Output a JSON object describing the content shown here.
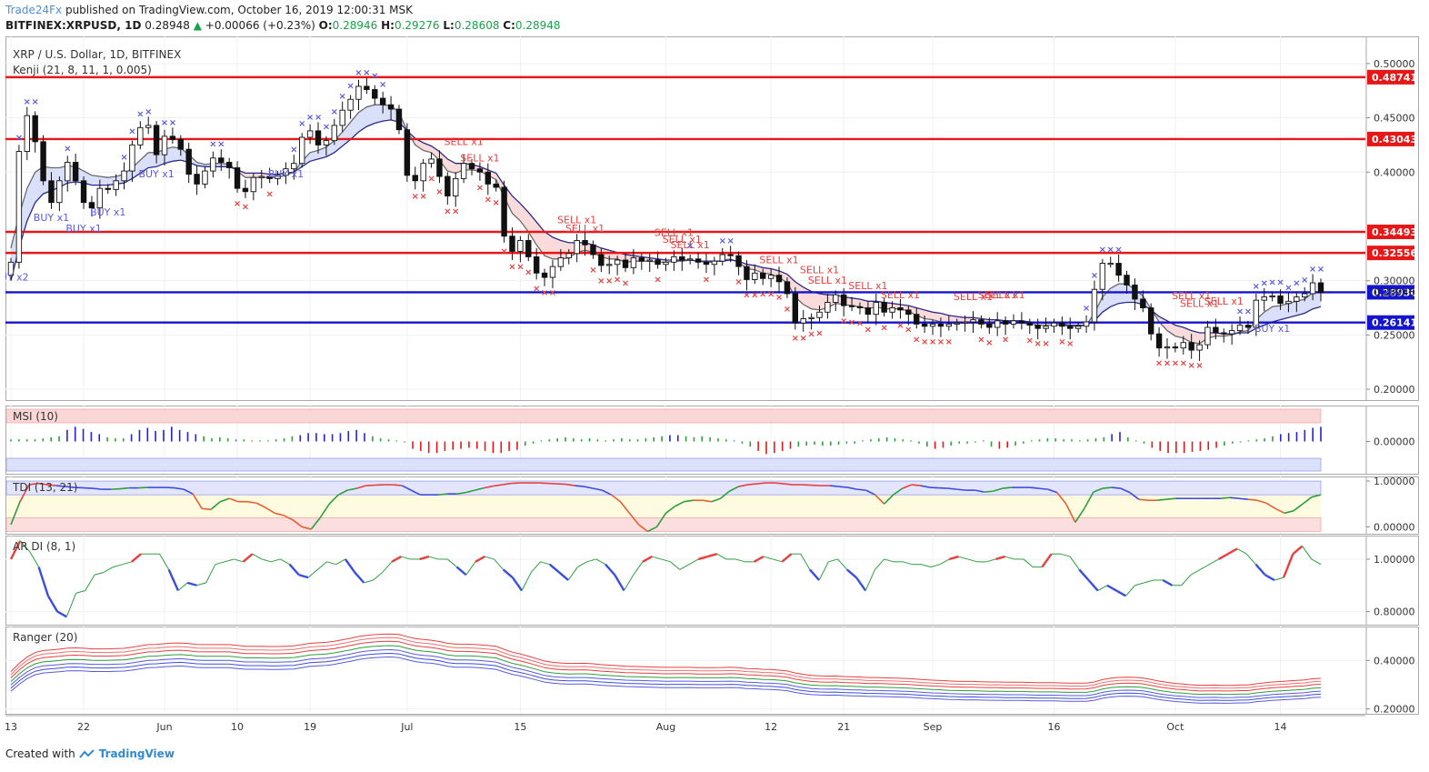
{
  "header": {
    "author": "Trade24Fx",
    "published_line": " published on TradingView.com, October 16, 2019 12:00:31 MSK",
    "symbol": "BITFINEX:XRPUSD, 1D",
    "last": "0.28948",
    "change_arrow": "▲",
    "change": "+0.00066 (+0.23%)",
    "o_label": "O:",
    "o": "0.28946",
    "h_label": "H:",
    "h": "0.29276",
    "l_label": "L:",
    "l": "0.28608",
    "c_label": "C:",
    "c": "0.28948"
  },
  "footer": {
    "created_with": "Created with",
    "brand": "TradingView"
  },
  "colors": {
    "up_text": "#19a24a",
    "resistance": "#e81717",
    "support": "#1414cc",
    "buy": "#5a5adc",
    "sell": "#e84040",
    "candle": "#111111",
    "pane_border": "#999999"
  },
  "chart_data": [
    {
      "type": "candlestick",
      "title": "XRP / U.S. Dollar, 1D, BITFINEX",
      "indicator": "Kenji (21, 8, 11, 1, 0.005)",
      "ylim": [
        0.19,
        0.525
      ],
      "yticks": [
        "0.50000",
        "0.45000",
        "0.40000",
        "0.30000",
        "0.25000",
        "0.20000"
      ],
      "ytick_values": [
        0.5,
        0.45,
        0.4,
        0.3,
        0.25,
        0.2
      ],
      "xticks": [
        "13",
        "22",
        "Jun",
        "10",
        "19",
        "Jul",
        "15",
        "Aug",
        "12",
        "21",
        "Sep",
        "16",
        "Oct",
        "14"
      ],
      "xtick_index": [
        0,
        9,
        19,
        28,
        37,
        49,
        63,
        81,
        94,
        103,
        114,
        129,
        144,
        157
      ],
      "horizontal_levels": [
        {
          "value": 0.48741,
          "label": "0.48741",
          "color": "#e81717"
        },
        {
          "value": 0.43043,
          "label": "0.43043",
          "color": "#e81717"
        },
        {
          "value": 0.34493,
          "label": "0.34493",
          "color": "#e81717"
        },
        {
          "value": 0.32556,
          "label": "0.32556",
          "color": "#e81717"
        },
        {
          "value": 0.2893,
          "label": "0.28930",
          "color": "#1414cc"
        },
        {
          "value": 0.26141,
          "label": "0.26141",
          "color": "#1414cc"
        }
      ],
      "last_price": {
        "value": 0.28948,
        "label": "0.28948"
      },
      "signals": [
        {
          "text": "BUY x2",
          "index": 0,
          "price": 0.3
        },
        {
          "text": "BUY x1",
          "index": 5,
          "price": 0.355
        },
        {
          "text": "BUY x1",
          "index": 9,
          "price": 0.345
        },
        {
          "text": "BUY x1",
          "index": 12,
          "price": 0.36
        },
        {
          "text": "BUY x1",
          "index": 18,
          "price": 0.395
        },
        {
          "text": "BUY x1",
          "index": 34,
          "price": 0.395
        },
        {
          "text": "SELL x1",
          "index": 56,
          "price": 0.425
        },
        {
          "text": "SELL x1",
          "index": 58,
          "price": 0.41
        },
        {
          "text": "SELL x1",
          "index": 70,
          "price": 0.353
        },
        {
          "text": "SELL x1",
          "index": 71,
          "price": 0.345
        },
        {
          "text": "SELL x1",
          "index": 82,
          "price": 0.341
        },
        {
          "text": "SELL x1",
          "index": 83,
          "price": 0.335
        },
        {
          "text": "SELL x1",
          "index": 84,
          "price": 0.33
        },
        {
          "text": "SELL x1",
          "index": 95,
          "price": 0.316
        },
        {
          "text": "SELL x1",
          "index": 100,
          "price": 0.307
        },
        {
          "text": "SELL x1",
          "index": 101,
          "price": 0.297
        },
        {
          "text": "SELL x1",
          "index": 106,
          "price": 0.292
        },
        {
          "text": "SELL x1",
          "index": 110,
          "price": 0.284
        },
        {
          "text": "SELL x1",
          "index": 119,
          "price": 0.282
        },
        {
          "text": "SELL x1",
          "index": 122,
          "price": 0.284
        },
        {
          "text": "SELL x1",
          "index": 123,
          "price": 0.284
        },
        {
          "text": "SELL x1",
          "index": 146,
          "price": 0.283
        },
        {
          "text": "SELL x1",
          "index": 147,
          "price": 0.276
        },
        {
          "text": "SELL x1",
          "index": 150,
          "price": 0.278
        },
        {
          "text": "BUY x1",
          "index": 156,
          "price": 0.253
        }
      ],
      "close": [
        0.317,
        0.419,
        0.452,
        0.428,
        0.392,
        0.372,
        0.392,
        0.409,
        0.392,
        0.372,
        0.367,
        0.385,
        0.384,
        0.392,
        0.401,
        0.425,
        0.441,
        0.443,
        0.416,
        0.433,
        0.43,
        0.421,
        0.398,
        0.389,
        0.401,
        0.413,
        0.409,
        0.404,
        0.385,
        0.382,
        0.395,
        0.396,
        0.394,
        0.397,
        0.403,
        0.408,
        0.432,
        0.438,
        0.425,
        0.429,
        0.443,
        0.457,
        0.467,
        0.479,
        0.476,
        0.468,
        0.462,
        0.458,
        0.439,
        0.397,
        0.392,
        0.408,
        0.412,
        0.396,
        0.378,
        0.394,
        0.408,
        0.403,
        0.4,
        0.389,
        0.386,
        0.341,
        0.327,
        0.337,
        0.322,
        0.307,
        0.303,
        0.313,
        0.321,
        0.325,
        0.337,
        0.333,
        0.324,
        0.314,
        0.315,
        0.319,
        0.312,
        0.321,
        0.318,
        0.319,
        0.315,
        0.317,
        0.322,
        0.319,
        0.32,
        0.317,
        0.315,
        0.318,
        0.324,
        0.323,
        0.313,
        0.301,
        0.307,
        0.302,
        0.305,
        0.299,
        0.288,
        0.261,
        0.265,
        0.266,
        0.271,
        0.28,
        0.287,
        0.277,
        0.276,
        0.275,
        0.269,
        0.28,
        0.271,
        0.275,
        0.273,
        0.269,
        0.26,
        0.258,
        0.26,
        0.258,
        0.26,
        0.261,
        0.262,
        0.264,
        0.26,
        0.257,
        0.263,
        0.26,
        0.263,
        0.261,
        0.259,
        0.256,
        0.258,
        0.261,
        0.258,
        0.256,
        0.258,
        0.262,
        0.292,
        0.316,
        0.316,
        0.305,
        0.296,
        0.283,
        0.275,
        0.251,
        0.238,
        0.239,
        0.238,
        0.243,
        0.236,
        0.241,
        0.257,
        0.252,
        0.251,
        0.254,
        0.259,
        0.257,
        0.282,
        0.285,
        0.286,
        0.279,
        0.281,
        0.285,
        0.288,
        0.298,
        0.289
      ],
      "ma_fast": [
        0.33,
        0.36,
        0.385,
        0.4,
        0.405,
        0.404,
        0.404,
        0.406,
        0.405,
        0.401,
        0.397,
        0.396,
        0.395,
        0.396,
        0.398,
        0.404,
        0.411,
        0.418,
        0.418,
        0.421,
        0.423,
        0.422,
        0.416,
        0.409,
        0.407,
        0.408,
        0.408,
        0.407,
        0.401,
        0.395,
        0.395,
        0.395,
        0.395,
        0.395,
        0.397,
        0.4,
        0.41,
        0.418,
        0.42,
        0.423,
        0.429,
        0.437,
        0.446,
        0.455,
        0.46,
        0.462,
        0.462,
        0.461,
        0.455,
        0.438,
        0.425,
        0.42,
        0.418,
        0.411,
        0.401,
        0.399,
        0.402,
        0.402,
        0.401,
        0.397,
        0.393,
        0.377,
        0.362,
        0.355,
        0.345,
        0.333,
        0.323,
        0.32,
        0.32,
        0.321,
        0.326,
        0.328,
        0.326,
        0.322,
        0.32,
        0.32,
        0.317,
        0.318,
        0.318,
        0.318,
        0.317,
        0.317,
        0.318,
        0.318,
        0.319,
        0.318,
        0.317,
        0.317,
        0.319,
        0.32,
        0.317,
        0.311,
        0.31,
        0.307,
        0.306,
        0.303,
        0.298,
        0.285,
        0.278,
        0.274,
        0.273,
        0.275,
        0.279,
        0.278,
        0.277,
        0.276,
        0.274,
        0.276,
        0.274,
        0.274,
        0.274,
        0.272,
        0.268,
        0.265,
        0.264,
        0.262,
        0.261,
        0.261,
        0.261,
        0.262,
        0.261,
        0.26,
        0.261,
        0.261,
        0.261,
        0.261,
        0.26,
        0.259,
        0.259,
        0.259,
        0.259,
        0.258,
        0.258,
        0.259,
        0.27,
        0.285,
        0.293,
        0.297,
        0.297,
        0.292,
        0.286,
        0.274,
        0.262,
        0.254,
        0.249,
        0.247,
        0.243,
        0.242,
        0.247,
        0.249,
        0.249,
        0.25,
        0.253,
        0.254,
        0.264,
        0.271,
        0.276,
        0.277,
        0.279,
        0.281,
        0.283,
        0.289,
        0.289
      ],
      "ma_slow": [
        0.3,
        0.33,
        0.355,
        0.372,
        0.38,
        0.383,
        0.386,
        0.39,
        0.391,
        0.39,
        0.388,
        0.388,
        0.388,
        0.389,
        0.39,
        0.394,
        0.399,
        0.404,
        0.405,
        0.408,
        0.41,
        0.411,
        0.409,
        0.406,
        0.405,
        0.405,
        0.405,
        0.405,
        0.402,
        0.399,
        0.399,
        0.399,
        0.398,
        0.398,
        0.399,
        0.4,
        0.405,
        0.41,
        0.412,
        0.414,
        0.418,
        0.424,
        0.43,
        0.437,
        0.442,
        0.445,
        0.447,
        0.448,
        0.446,
        0.438,
        0.431,
        0.427,
        0.424,
        0.419,
        0.412,
        0.408,
        0.408,
        0.407,
        0.405,
        0.402,
        0.399,
        0.388,
        0.378,
        0.371,
        0.363,
        0.354,
        0.345,
        0.34,
        0.337,
        0.335,
        0.335,
        0.335,
        0.333,
        0.33,
        0.328,
        0.326,
        0.324,
        0.323,
        0.322,
        0.321,
        0.32,
        0.319,
        0.319,
        0.319,
        0.319,
        0.318,
        0.318,
        0.318,
        0.318,
        0.319,
        0.318,
        0.315,
        0.314,
        0.312,
        0.311,
        0.309,
        0.306,
        0.299,
        0.294,
        0.29,
        0.288,
        0.287,
        0.287,
        0.285,
        0.284,
        0.283,
        0.281,
        0.281,
        0.28,
        0.279,
        0.278,
        0.277,
        0.275,
        0.273,
        0.271,
        0.27,
        0.268,
        0.267,
        0.266,
        0.266,
        0.265,
        0.264,
        0.264,
        0.263,
        0.263,
        0.263,
        0.262,
        0.261,
        0.261,
        0.261,
        0.26,
        0.259,
        0.259,
        0.259,
        0.263,
        0.271,
        0.276,
        0.279,
        0.28,
        0.28,
        0.278,
        0.273,
        0.267,
        0.263,
        0.259,
        0.257,
        0.254,
        0.252,
        0.252,
        0.252,
        0.251,
        0.251,
        0.252,
        0.252,
        0.256,
        0.259,
        0.262,
        0.264,
        0.266,
        0.268,
        0.27,
        0.274,
        0.276
      ]
    },
    {
      "type": "bar",
      "title": "MSI (10)",
      "yticks": [
        "0.00000"
      ],
      "ytick_values": [
        0
      ],
      "ylim": [
        -1.3,
        1.3
      ],
      "values": [
        0.1,
        0.1,
        0.1,
        0.1,
        0.15,
        0.2,
        0.25,
        0.55,
        0.7,
        0.6,
        0.45,
        0.35,
        0.2,
        0.15,
        0.15,
        0.35,
        0.55,
        0.65,
        0.5,
        0.55,
        0.7,
        0.55,
        0.45,
        0.35,
        0.25,
        0.15,
        0.2,
        0.15,
        0.1,
        0.1,
        0.05,
        0.05,
        0.05,
        0.1,
        0.15,
        0.25,
        0.3,
        0.4,
        0.4,
        0.35,
        0.35,
        0.4,
        0.5,
        0.55,
        0.4,
        0.25,
        0.15,
        0.1,
        0.05,
        -0.05,
        -0.35,
        -0.45,
        -0.55,
        -0.55,
        -0.45,
        -0.4,
        -0.35,
        -0.3,
        -0.35,
        -0.45,
        -0.55,
        -0.55,
        -0.45,
        -0.4,
        -0.2,
        -0.1,
        0.05,
        0.1,
        0.15,
        0.2,
        0.15,
        0.1,
        0.15,
        0.1,
        0.05,
        0.1,
        0.15,
        0.1,
        0.1,
        0.15,
        0.2,
        0.25,
        0.3,
        0.3,
        0.25,
        0.2,
        0.25,
        0.2,
        0.15,
        0.1,
        0.05,
        -0.1,
        -0.25,
        -0.45,
        -0.6,
        -0.55,
        -0.45,
        -0.35,
        -0.25,
        -0.2,
        -0.15,
        -0.2,
        -0.2,
        -0.15,
        -0.1,
        -0.1,
        0.05,
        0.1,
        0.15,
        0.2,
        0.15,
        0.1,
        0.05,
        -0.1,
        -0.25,
        -0.35,
        -0.3,
        -0.2,
        -0.1,
        -0.1,
        -0.05,
        0.05,
        -0.25,
        -0.35,
        -0.3,
        -0.2,
        -0.1,
        0.05,
        0.1,
        0.15,
        0.15,
        0.1,
        0.1,
        0.05,
        0.1,
        0.15,
        0.2,
        0.35,
        0.45,
        0.2,
        0.05,
        -0.1,
        -0.3,
        -0.45,
        -0.55,
        -0.55,
        -0.55,
        -0.5,
        -0.45,
        -0.4,
        -0.3,
        -0.2,
        -0.1,
        -0.05,
        0.05,
        0.1,
        0.15,
        0.25,
        0.35,
        0.4,
        0.45,
        0.55,
        0.65,
        0.7
      ]
    },
    {
      "type": "line",
      "title": "TDI (13, 21)",
      "yticks": [
        "1.00000",
        "0.00000"
      ],
      "ytick_values": [
        1.0,
        0.0
      ],
      "ylim": [
        -0.15,
        1.1
      ],
      "values": [
        0.05,
        0.55,
        0.92,
        0.95,
        0.92,
        0.9,
        0.88,
        0.86,
        0.85,
        0.84,
        0.82,
        0.82,
        0.83,
        0.85,
        0.85,
        0.86,
        0.86,
        0.86,
        0.85,
        0.82,
        0.72,
        0.4,
        0.38,
        0.55,
        0.62,
        0.55,
        0.55,
        0.52,
        0.42,
        0.3,
        0.25,
        0.15,
        0.0,
        -0.05,
        0.2,
        0.5,
        0.7,
        0.8,
        0.84,
        0.9,
        0.91,
        0.92,
        0.92,
        0.9,
        0.8,
        0.7,
        0.7,
        0.7,
        0.72,
        0.72,
        0.75,
        0.8,
        0.85,
        0.89,
        0.92,
        0.95,
        0.96,
        0.96,
        0.96,
        0.95,
        0.94,
        0.93,
        0.9,
        0.88,
        0.84,
        0.8,
        0.7,
        0.55,
        0.3,
        0.05,
        -0.1,
        0.0,
        0.3,
        0.45,
        0.55,
        0.58,
        0.58,
        0.55,
        0.62,
        0.78,
        0.88,
        0.92,
        0.94,
        0.96,
        0.96,
        0.94,
        0.92,
        0.92,
        0.91,
        0.9,
        0.9,
        0.88,
        0.86,
        0.82,
        0.8,
        0.7,
        0.5,
        0.7,
        0.84,
        0.92,
        0.9,
        0.86,
        0.85,
        0.84,
        0.82,
        0.8,
        0.8,
        0.76,
        0.78,
        0.84,
        0.86,
        0.86,
        0.86,
        0.84,
        0.82,
        0.75,
        0.5,
        0.1,
        0.4,
        0.76,
        0.84,
        0.86,
        0.84,
        0.75,
        0.6,
        0.58,
        0.58,
        0.6,
        0.62,
        0.62,
        0.62,
        0.62,
        0.62,
        0.62,
        0.64,
        0.62,
        0.6,
        0.58,
        0.52,
        0.4,
        0.3,
        0.35,
        0.5,
        0.65,
        0.7
      ],
      "bands": [
        0.7,
        0.2
      ]
    },
    {
      "type": "line",
      "title": "AR DI (8, 1)",
      "yticks": [
        "1.00000",
        "0.80000"
      ],
      "ytick_values": [
        1.0,
        0.8
      ],
      "ylim": [
        0.75,
        1.09
      ],
      "values": [
        1.0,
        1.07,
        1.03,
        0.97,
        0.86,
        0.8,
        0.78,
        0.87,
        0.88,
        0.94,
        0.95,
        0.97,
        0.98,
        0.99,
        1.02,
        1.02,
        1.02,
        0.96,
        0.88,
        0.91,
        0.9,
        0.91,
        0.98,
        0.99,
        1.0,
        0.99,
        1.02,
        1.0,
        0.99,
        1.0,
        0.98,
        0.94,
        0.93,
        0.96,
        0.99,
        0.98,
        1.0,
        0.95,
        0.91,
        0.92,
        0.95,
        0.99,
        1.01,
        1.0,
        1.0,
        1.01,
        1.0,
        1.0,
        0.97,
        0.94,
        0.99,
        1.01,
        1.0,
        0.96,
        0.93,
        0.88,
        0.95,
        0.99,
        0.98,
        0.95,
        0.92,
        0.97,
        0.99,
        1.0,
        0.98,
        0.94,
        0.88,
        0.94,
        0.99,
        1.01,
        1.0,
        0.99,
        0.96,
        0.98,
        1.0,
        1.01,
        1.02,
        1.0,
        1.0,
        0.99,
        0.99,
        1.01,
        1.0,
        0.99,
        1.02,
        1.02,
        0.96,
        0.92,
        0.99,
        1.0,
        0.96,
        0.93,
        0.88,
        0.96,
        1.0,
        0.99,
        0.99,
        0.98,
        0.98,
        0.97,
        0.98,
        1.0,
        1.01,
        1.0,
        0.99,
        0.99,
        1.0,
        1.01,
        1.0,
        1.0,
        0.97,
        0.97,
        1.02,
        1.02,
        1.01,
        0.96,
        0.92,
        0.88,
        0.9,
        0.88,
        0.86,
        0.9,
        0.91,
        0.92,
        0.92,
        0.9,
        0.9,
        0.94,
        0.96,
        0.98,
        1.0,
        1.02,
        1.04,
        1.02,
        0.98,
        0.94,
        0.92,
        0.93,
        1.02,
        1.05,
        1.0,
        0.98
      ]
    },
    {
      "type": "line",
      "title": "Ranger (20)",
      "yticks": [
        "0.40000",
        "0.20000"
      ],
      "ytick_values": [
        0.4,
        0.2
      ],
      "ylim": [
        0.18,
        0.54
      ]
    }
  ]
}
